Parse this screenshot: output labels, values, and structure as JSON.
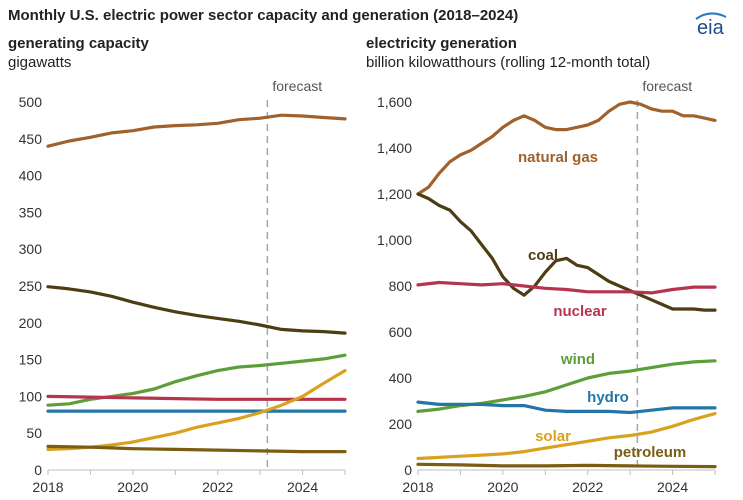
{
  "title": "Monthly U.S. electric power sector capacity and generation (2018–2024)",
  "logo_text": "eia",
  "colors": {
    "natural_gas": "#a0612d",
    "coal": "#4e3c14",
    "nuclear": "#b53551",
    "wind": "#5e9e3a",
    "hydro": "#2475a8",
    "solar": "#d8a21f",
    "petroleum": "#7a5d12",
    "forecast_line": "#a6a6a6",
    "axis": "#bfbfbf"
  },
  "chart_data": [
    {
      "type": "line",
      "title": "generating capacity",
      "ylabel": "gigawatts",
      "ylim": [
        0,
        500
      ],
      "xlim": [
        2018.0,
        2025.0
      ],
      "yticks": [
        "0",
        "50",
        "100",
        "150",
        "200",
        "250",
        "300",
        "350",
        "400",
        "450",
        "500"
      ],
      "xticks": [
        "2018",
        "2020",
        "2022",
        "2024"
      ],
      "forecast_label": "forecast",
      "forecast_start": 2023.17,
      "series": [
        {
          "key": "natural_gas",
          "x": [
            2018.0,
            2018.5,
            2019.0,
            2019.5,
            2020.0,
            2020.5,
            2021.0,
            2021.5,
            2022.0,
            2022.5,
            2023.0,
            2023.5,
            2024.0,
            2024.5,
            2025.0
          ],
          "y": [
            440,
            447,
            452,
            458,
            461,
            466,
            468,
            469,
            471,
            476,
            478,
            482,
            481,
            479,
            477
          ]
        },
        {
          "key": "coal",
          "x": [
            2018.0,
            2018.5,
            2019.0,
            2019.5,
            2020.0,
            2020.5,
            2021.0,
            2021.5,
            2022.0,
            2022.5,
            2023.0,
            2023.5,
            2024.0,
            2024.5,
            2025.0
          ],
          "y": [
            249,
            246,
            242,
            236,
            228,
            221,
            215,
            210,
            206,
            202,
            197,
            191,
            189,
            188,
            186
          ]
        },
        {
          "key": "wind",
          "x": [
            2018.0,
            2018.5,
            2019.0,
            2019.5,
            2020.0,
            2020.5,
            2021.0,
            2021.5,
            2022.0,
            2022.5,
            2023.0,
            2023.5,
            2024.0,
            2024.5,
            2025.0
          ],
          "y": [
            88,
            90,
            96,
            100,
            104,
            110,
            120,
            128,
            135,
            140,
            142,
            145,
            148,
            151,
            156
          ]
        },
        {
          "key": "nuclear",
          "x": [
            2018.0,
            2019.0,
            2020.0,
            2021.0,
            2022.0,
            2023.0,
            2024.0,
            2025.0
          ],
          "y": [
            100,
            99,
            98,
            97,
            96,
            96,
            96,
            96
          ]
        },
        {
          "key": "hydro",
          "x": [
            2018.0,
            2019.0,
            2020.0,
            2021.0,
            2022.0,
            2023.0,
            2024.0,
            2025.0
          ],
          "y": [
            80,
            80,
            80,
            80,
            80,
            80,
            80,
            80
          ]
        },
        {
          "key": "solar",
          "x": [
            2018.0,
            2018.5,
            2019.0,
            2019.5,
            2020.0,
            2020.5,
            2021.0,
            2021.5,
            2022.0,
            2022.5,
            2023.0,
            2023.5,
            2024.0,
            2024.5,
            2025.0
          ],
          "y": [
            28,
            29,
            31,
            34,
            38,
            44,
            50,
            58,
            64,
            70,
            78,
            88,
            100,
            118,
            135
          ]
        },
        {
          "key": "petroleum",
          "x": [
            2018.0,
            2019.0,
            2020.0,
            2021.0,
            2022.0,
            2023.0,
            2024.0,
            2025.0
          ],
          "y": [
            32,
            31,
            29,
            28,
            27,
            26,
            25,
            25
          ]
        }
      ]
    },
    {
      "type": "line",
      "title": "electricity generation",
      "ylabel": "billion kilowatthours (rolling 12-month total)",
      "ylim": [
        0,
        1600
      ],
      "xlim": [
        2018.0,
        2025.0
      ],
      "yticks": [
        "0",
        "200",
        "400",
        "600",
        "800",
        "1,000",
        "1,200",
        "1,400",
        "1,600"
      ],
      "xticks": [
        "2018",
        "2020",
        "2022",
        "2024"
      ],
      "forecast_label": "forecast",
      "forecast_start": 2023.17,
      "series": [
        {
          "key": "natural_gas",
          "label": "natural gas",
          "x": [
            2018.0,
            2018.25,
            2018.5,
            2018.75,
            2019.0,
            2019.25,
            2019.5,
            2019.75,
            2020.0,
            2020.25,
            2020.5,
            2020.75,
            2021.0,
            2021.25,
            2021.5,
            2021.75,
            2022.0,
            2022.25,
            2022.5,
            2022.75,
            2023.0,
            2023.25,
            2023.5,
            2023.75,
            2024.0,
            2024.25,
            2024.5,
            2024.75,
            2025.0
          ],
          "y": [
            1200,
            1230,
            1290,
            1340,
            1370,
            1390,
            1420,
            1450,
            1490,
            1520,
            1540,
            1520,
            1490,
            1480,
            1480,
            1490,
            1500,
            1520,
            1560,
            1590,
            1600,
            1590,
            1570,
            1560,
            1560,
            1540,
            1540,
            1530,
            1520
          ]
        },
        {
          "key": "coal",
          "label": "coal",
          "x": [
            2018.0,
            2018.25,
            2018.5,
            2018.75,
            2019.0,
            2019.25,
            2019.5,
            2019.75,
            2020.0,
            2020.25,
            2020.5,
            2020.75,
            2021.0,
            2021.25,
            2021.5,
            2021.75,
            2022.0,
            2022.25,
            2022.5,
            2022.75,
            2023.0,
            2023.25,
            2023.5,
            2023.75,
            2024.0,
            2024.25,
            2024.5,
            2024.75,
            2025.0
          ],
          "y": [
            1200,
            1180,
            1150,
            1130,
            1080,
            1040,
            980,
            920,
            840,
            790,
            760,
            800,
            860,
            910,
            920,
            890,
            880,
            850,
            820,
            800,
            780,
            760,
            740,
            720,
            700,
            700,
            700,
            695,
            695
          ]
        },
        {
          "key": "nuclear",
          "label": "nuclear",
          "x": [
            2018.0,
            2018.5,
            2019.0,
            2019.5,
            2020.0,
            2020.5,
            2021.0,
            2021.5,
            2022.0,
            2022.5,
            2023.0,
            2023.5,
            2024.0,
            2024.5,
            2025.0
          ],
          "y": [
            805,
            815,
            810,
            805,
            810,
            800,
            790,
            785,
            775,
            775,
            775,
            770,
            785,
            795,
            795
          ]
        },
        {
          "key": "wind",
          "label": "wind",
          "x": [
            2018.0,
            2018.5,
            2019.0,
            2019.5,
            2020.0,
            2020.5,
            2021.0,
            2021.5,
            2022.0,
            2022.5,
            2023.0,
            2023.5,
            2024.0,
            2024.5,
            2025.0
          ],
          "y": [
            255,
            265,
            280,
            290,
            305,
            320,
            340,
            370,
            400,
            420,
            430,
            445,
            460,
            470,
            475
          ]
        },
        {
          "key": "hydro",
          "label": "hydro",
          "x": [
            2018.0,
            2018.5,
            2019.0,
            2019.5,
            2020.0,
            2020.5,
            2021.0,
            2021.5,
            2022.0,
            2022.5,
            2023.0,
            2023.5,
            2024.0,
            2024.5,
            2025.0
          ],
          "y": [
            295,
            285,
            285,
            285,
            280,
            280,
            260,
            255,
            255,
            255,
            250,
            260,
            270,
            270,
            270
          ]
        },
        {
          "key": "solar",
          "label": "solar",
          "x": [
            2018.0,
            2018.5,
            2019.0,
            2019.5,
            2020.0,
            2020.5,
            2021.0,
            2021.5,
            2022.0,
            2022.5,
            2023.0,
            2023.5,
            2024.0,
            2024.5,
            2025.0
          ],
          "y": [
            50,
            55,
            60,
            65,
            70,
            80,
            95,
            110,
            125,
            140,
            150,
            165,
            190,
            220,
            245
          ]
        },
        {
          "key": "petroleum",
          "label": "petroleum",
          "x": [
            2018.0,
            2019.0,
            2020.0,
            2021.0,
            2022.0,
            2023.0,
            2024.0,
            2025.0
          ],
          "y": [
            25,
            22,
            18,
            18,
            20,
            18,
            16,
            15
          ]
        }
      ]
    }
  ]
}
